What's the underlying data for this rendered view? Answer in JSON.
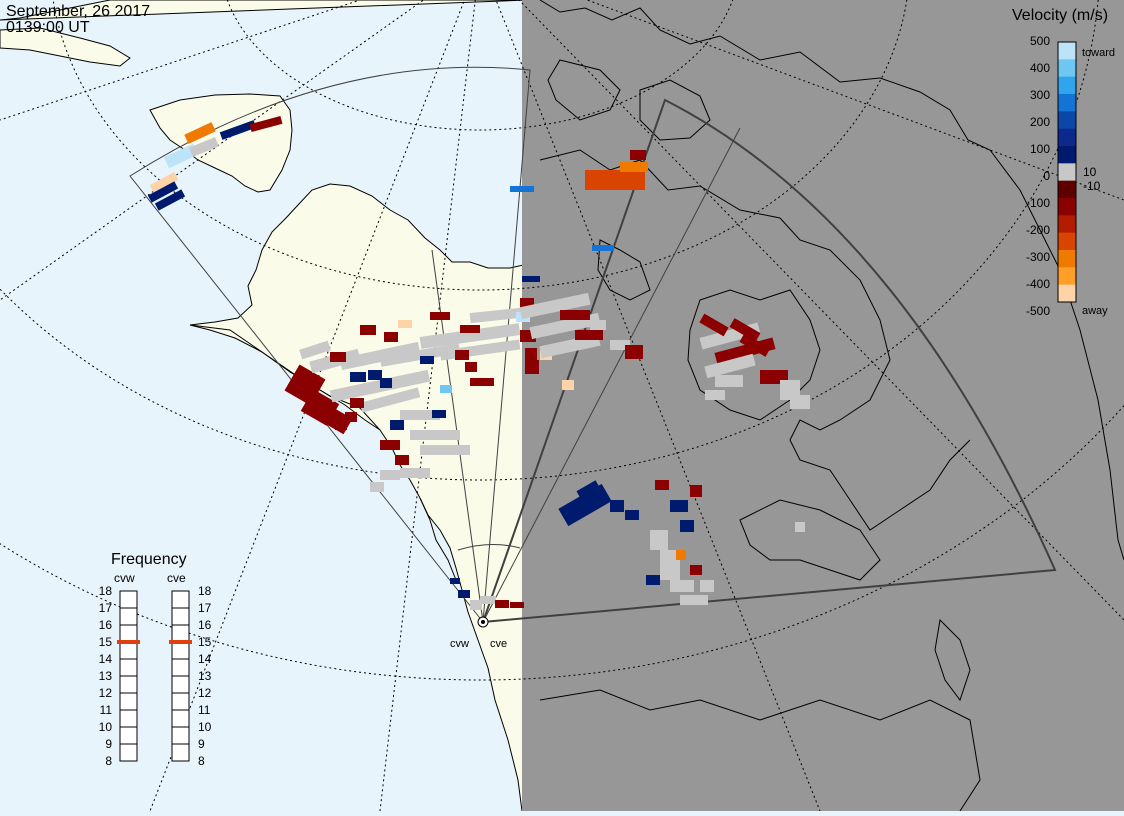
{
  "header": {
    "date": "September, 26 2017",
    "time": "0139:00 UT"
  },
  "colors": {
    "ocean": "#e8f4fb",
    "land_day": "#fbfbea",
    "night": "#979797",
    "ground_scatter": "#c8c8c8",
    "coast": "#000000",
    "fov": "#404040"
  },
  "velocity_scale": {
    "title": "Velocity (m/s)",
    "toward_label": "toward",
    "away_label": "away",
    "ticks": [
      "500",
      "400",
      "300",
      "200",
      "100",
      "10",
      "0",
      "-10",
      "-100",
      "-200",
      "-300",
      "-400",
      "-500"
    ],
    "colors": [
      "#bde3f8",
      "#6ec6f2",
      "#2ea5ec",
      "#1374d6",
      "#0a47a8",
      "#0b2a8c",
      "#001a6e",
      "#c8c8c8",
      "#5e0000",
      "#8b0000",
      "#b31c00",
      "#d94500",
      "#f07a00",
      "#ff9f2a",
      "#fcd4a8"
    ]
  },
  "frequency": {
    "title": "Frequency",
    "radars": [
      {
        "name": "cvw",
        "freq_mhz": 15
      },
      {
        "name": "cve",
        "freq_mhz": 15
      }
    ],
    "ticks": [
      "18",
      "17",
      "16",
      "15",
      "14",
      "13",
      "12",
      "11",
      "10",
      "9",
      "8"
    ],
    "marker_color": "#e0400f"
  },
  "radars": [
    {
      "name": "cvw"
    },
    {
      "name": "cve"
    }
  ]
}
